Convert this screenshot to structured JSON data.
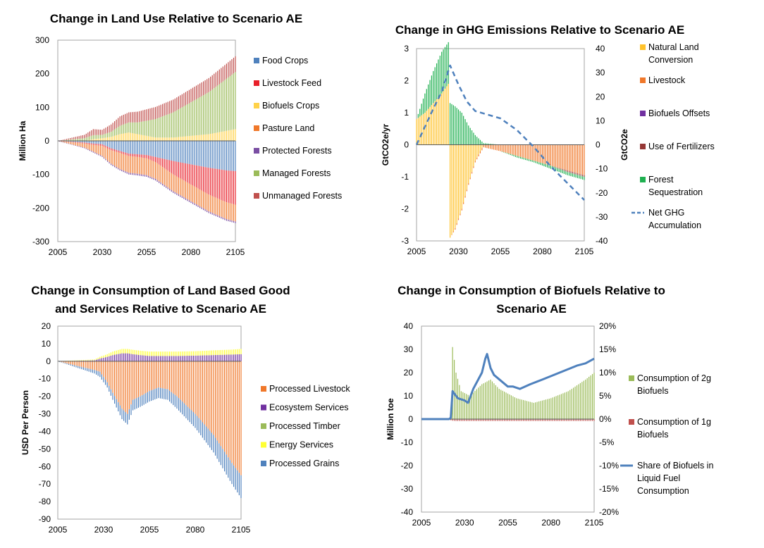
{
  "chart_data": [
    {
      "id": "land-use",
      "type": "bar",
      "stacked": true,
      "title": [
        "Change in Land Use Relative to Scenario AE"
      ],
      "ylabel": "Million Ha",
      "xlabel": "",
      "x_start": 2005,
      "x_end": 2105,
      "x_ticks": [
        "2005",
        "2030",
        "2055",
        "2080",
        "2105"
      ],
      "ylim": [
        -300,
        300
      ],
      "y_ticks": [
        "300",
        "200",
        "100",
        "0",
        "-100",
        "-200",
        "-300"
      ],
      "grid": false,
      "legend_position": "right",
      "keypoints_x": [
        2005,
        2020,
        2025,
        2030,
        2035,
        2040,
        2045,
        2050,
        2055,
        2060,
        2070,
        2080,
        2090,
        2100,
        2105
      ],
      "series": [
        {
          "name": "Food Crops",
          "color": "#4f81bd",
          "values": [
            0,
            -5,
            -8,
            -10,
            -22,
            -30,
            -38,
            -40,
            -42,
            -48,
            -60,
            -70,
            -80,
            -88,
            -90
          ]
        },
        {
          "name": "Livestock Feed",
          "color": "#e8202a",
          "values": [
            0,
            -3,
            -4,
            -5,
            -6,
            -6,
            -7,
            -8,
            -10,
            -15,
            -40,
            -60,
            -80,
            -95,
            -100
          ]
        },
        {
          "name": "Biofuels Crops",
          "color": "#ffd24a",
          "values": [
            0,
            0,
            5,
            8,
            12,
            20,
            25,
            20,
            15,
            10,
            10,
            15,
            20,
            30,
            35
          ]
        },
        {
          "name": "Pasture Land",
          "color": "#f0782a",
          "values": [
            0,
            -12,
            -20,
            -30,
            -40,
            -48,
            -50,
            -50,
            -50,
            -50,
            -50,
            -50,
            -50,
            -50,
            -50
          ]
        },
        {
          "name": "Protected Forests",
          "color": "#7a4ea3",
          "values": [
            0,
            -2,
            -3,
            -3,
            -4,
            -4,
            -5,
            -5,
            -5,
            -5,
            -5,
            -5,
            -5,
            -5,
            -5
          ]
        },
        {
          "name": "Managed Forests",
          "color": "#9bbb59",
          "values": [
            0,
            8,
            12,
            10,
            15,
            25,
            30,
            35,
            45,
            55,
            75,
            100,
            125,
            155,
            170
          ]
        },
        {
          "name": "Unmanaged Forests",
          "color": "#c0504d",
          "values": [
            0,
            10,
            18,
            15,
            22,
            28,
            30,
            32,
            34,
            36,
            38,
            40,
            42,
            45,
            47
          ]
        }
      ]
    },
    {
      "id": "ghg",
      "type": "bar",
      "stacked": true,
      "title": [
        "Change in GHG Emissions Relative to Scenario AE"
      ],
      "ylabel": "GtCO2e/yr",
      "y2label": "GtCO2e",
      "xlabel": "",
      "x_start": 2005,
      "x_end": 2105,
      "x_ticks": [
        "2005",
        "2030",
        "2055",
        "2080",
        "2105"
      ],
      "ylim": [
        -3,
        3
      ],
      "y_ticks": [
        "3",
        "2",
        "1",
        "0",
        "-1",
        "-2",
        "-3"
      ],
      "y2lim": [
        -40,
        40
      ],
      "y2_ticks": [
        "40",
        "30",
        "20",
        "10",
        "0",
        "-10",
        "-20",
        "-30",
        "-40"
      ],
      "grid": false,
      "legend_position": "right",
      "keypoints_x": [
        2005,
        2010,
        2015,
        2020,
        2024,
        2025,
        2028,
        2032,
        2036,
        2040,
        2045,
        2055,
        2065,
        2075,
        2085,
        2095,
        2105
      ],
      "series": [
        {
          "name": "Natural Land Conversion",
          "color": "#ffc22a",
          "values": [
            0.8,
            1.0,
            1.3,
            1.6,
            1.9,
            -2.9,
            -2.6,
            -2.0,
            -1.2,
            -0.5,
            0,
            0,
            0,
            0,
            0,
            0,
            0
          ]
        },
        {
          "name": "Livestock",
          "color": "#f0782a",
          "values": [
            0,
            0,
            0,
            0,
            0,
            0,
            -0.05,
            -0.05,
            -0.05,
            -0.05,
            -0.08,
            -0.2,
            -0.35,
            -0.5,
            -0.65,
            -0.8,
            -0.95
          ]
        },
        {
          "name": "Biofuels Offsets",
          "color": "#7030a0",
          "values": [
            0,
            0,
            0,
            0,
            0,
            0,
            0,
            0,
            0,
            0,
            0,
            0,
            0,
            0,
            0,
            0,
            0
          ]
        },
        {
          "name": "Use of Fertilizers",
          "color": "#953735",
          "values": [
            0,
            0,
            0,
            0,
            0,
            0,
            0,
            0,
            0,
            0,
            0,
            0,
            0,
            0,
            0,
            -0.05,
            -0.05
          ]
        },
        {
          "name": "Forest Sequestration",
          "color": "#1fb050",
          "values": [
            0,
            0.6,
            1.0,
            1.3,
            1.3,
            1.3,
            1.2,
            1.0,
            0.6,
            0.3,
            0.05,
            0,
            -0.05,
            -0.05,
            -0.1,
            -0.1,
            -0.1
          ]
        }
      ],
      "line": {
        "name": "Net GHG Accumulation",
        "color": "#4f81bd",
        "axis": "right",
        "x": [
          2005,
          2015,
          2020,
          2025,
          2030,
          2035,
          2040,
          2045,
          2055,
          2065,
          2075,
          2080,
          2085,
          2095,
          2105
        ],
        "values": [
          0,
          15,
          22,
          33,
          25,
          18,
          14,
          13,
          11,
          6,
          -1,
          -5,
          -9,
          -16,
          -23
        ]
      }
    },
    {
      "id": "consumption",
      "type": "bar",
      "stacked": true,
      "title": [
        "Change in Consumption of Land Based Good",
        "and Services Relative to Scenario AE"
      ],
      "ylabel": "USD Per Person",
      "xlabel": "",
      "x_start": 2005,
      "x_end": 2105,
      "x_ticks": [
        "2005",
        "2030",
        "2055",
        "2080",
        "2105"
      ],
      "ylim": [
        -90,
        20
      ],
      "y_ticks": [
        "20",
        "10",
        "0",
        "-10",
        "-20",
        "-30",
        "-40",
        "-50",
        "-60",
        "-70",
        "-80",
        "-90"
      ],
      "grid": false,
      "legend_position": "right",
      "keypoints_x": [
        2005,
        2025,
        2028,
        2032,
        2035,
        2040,
        2043,
        2046,
        2050,
        2055,
        2060,
        2065,
        2070,
        2080,
        2090,
        2100,
        2105
      ],
      "series": [
        {
          "name": "Processed Livestock",
          "color": "#f0782a",
          "values": [
            0,
            -5,
            -6,
            -12,
            -18,
            -27,
            -30,
            -22,
            -20,
            -17,
            -15,
            -16,
            -20,
            -30,
            -42,
            -58,
            -65
          ]
        },
        {
          "name": "Ecosystem Services",
          "color": "#7030a0",
          "values": [
            0,
            0.5,
            1.5,
            2.5,
            3.5,
            4.5,
            4.5,
            4,
            3.5,
            3,
            3,
            3,
            3,
            3.2,
            3.5,
            3.8,
            4
          ]
        },
        {
          "name": "Processed Timber",
          "color": "#9bbb59",
          "values": [
            0,
            0,
            0,
            0,
            0,
            0,
            0,
            0,
            0,
            0,
            0,
            0,
            0,
            0,
            0,
            0,
            0
          ]
        },
        {
          "name": "Energy Services",
          "color": "#ffff33",
          "values": [
            0,
            0.5,
            1,
            1.5,
            2,
            2.5,
            2.5,
            2.5,
            2.5,
            2.5,
            2.5,
            2.5,
            2.5,
            2.5,
            2.7,
            2.8,
            3
          ]
        },
        {
          "name": "Processed Grains",
          "color": "#4f81bd",
          "values": [
            0,
            -2,
            -3,
            -3,
            -4,
            -6,
            -6,
            -6,
            -6,
            -6,
            -6,
            -6,
            -7,
            -8,
            -10,
            -12,
            -13
          ]
        }
      ]
    },
    {
      "id": "biofuels",
      "type": "bar",
      "stacked": false,
      "title": [
        "Change in Consumption of Biofuels Relative to",
        "Scenario AE"
      ],
      "ylabel": "Million toe",
      "xlabel": "",
      "x_start": 2005,
      "x_end": 2105,
      "x_ticks": [
        "2005",
        "2030",
        "2055",
        "2080",
        "2105"
      ],
      "ylim": [
        -40,
        40
      ],
      "y_ticks": [
        "40",
        "30",
        "20",
        "10",
        "0",
        "-10",
        "-20",
        "-30",
        "-40"
      ],
      "y2lim": [
        -20,
        20
      ],
      "y2_ticks": [
        "20%",
        "15%",
        "10%",
        "5%",
        "0%",
        "-5%",
        "-10%",
        "-15%",
        "-20%"
      ],
      "grid": false,
      "legend_position": "right",
      "keypoints_x": [
        2005,
        2021,
        2022,
        2023,
        2025,
        2028,
        2033,
        2040,
        2045,
        2050,
        2060,
        2070,
        2080,
        2090,
        2100,
        2105
      ],
      "series": [
        {
          "name": "Consumption of 2g Biofuels",
          "color": "#9bbb59",
          "values": [
            0,
            0,
            3,
            31,
            20,
            12,
            10,
            15,
            17,
            13,
            9,
            7,
            9,
            12,
            17,
            20
          ]
        },
        {
          "name": "Consumption of 1g Biofuels",
          "color": "#c0504d",
          "values": [
            0,
            0,
            -0.5,
            -0.7,
            -0.8,
            -0.8,
            -0.8,
            -0.8,
            -0.8,
            -0.8,
            -0.8,
            -0.8,
            -0.8,
            -0.8,
            -0.8,
            -0.8
          ]
        }
      ],
      "line": {
        "name": "Share of Biofuels in Liquid Fuel Consumption",
        "color": "#4f81bd",
        "axis": "right",
        "x": [
          2005,
          2021,
          2022,
          2023,
          2026,
          2030,
          2032,
          2035,
          2040,
          2042,
          2043,
          2045,
          2047,
          2055,
          2058,
          2062,
          2068,
          2075,
          2085,
          2095,
          2100,
          2105
        ],
        "values": [
          0,
          0,
          0.3,
          6,
          4.5,
          4,
          3.5,
          6.5,
          10,
          13,
          14,
          11,
          9.5,
          7,
          7,
          6.5,
          7.5,
          8.5,
          10,
          11.5,
          12,
          13
        ]
      }
    }
  ]
}
